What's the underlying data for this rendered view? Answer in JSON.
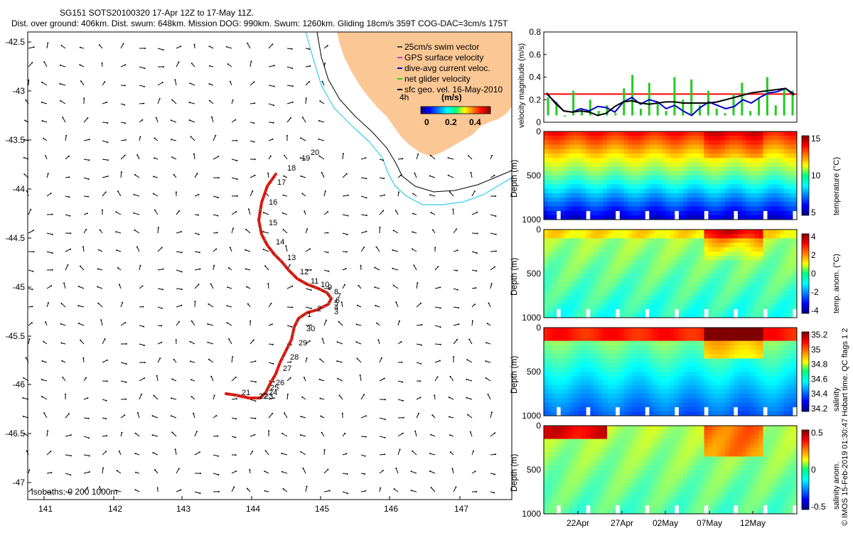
{
  "header": {
    "title": "SG151 SOTS20100320 17-Apr 12Z to 17-May 11Z.",
    "subtitle": "Dist. over ground: 406km. Dist. swum: 648km. Mission DOG: 990km. Swum: 1260km. Gliding 18cm/s 359T COG-DAC=3cm/s 175T"
  },
  "map": {
    "lon_ticks": [
      "141",
      "142",
      "143",
      "144",
      "145",
      "146",
      "147"
    ],
    "lat_ticks": [
      "-42.5",
      "-43",
      "-43.5",
      "-44",
      "-44.5",
      "-45",
      "-45.5",
      "-46",
      "-46.5",
      "-47"
    ],
    "legend": [
      {
        "label": "25cm/s swim vector",
        "color": "#444444"
      },
      {
        "label": "GPS surface velocity",
        "color": "#cc33cc"
      },
      {
        "label": "dive-avg current veloc.",
        "color": "#0000cc"
      },
      {
        "label": "net glider velocity",
        "color": "#22dd22"
      },
      {
        "label": "sfc geo. vel. 16-May-2010",
        "color": "#000000"
      }
    ],
    "legend_scale_label": "4h",
    "colorbar_unit": "(m/s)",
    "colorbar_ticks": [
      "0",
      "0.2",
      "0.4"
    ],
    "isobaths_label": "isobaths: 0   200  1000m",
    "track_day_labels": [
      "20",
      "19",
      "18",
      "17",
      "16",
      "15",
      "14",
      "13",
      "12",
      "11",
      "10",
      "9",
      "8",
      "7",
      "6",
      "5",
      "4",
      "3",
      "2",
      "1",
      "30",
      "29",
      "28",
      "27",
      "26",
      "25",
      "24",
      "23",
      "22",
      "21"
    ],
    "colors": {
      "land": "#fbc794",
      "coast_isobath": "#33ccee",
      "track": "#dd1111",
      "track_marker": "#22cc22"
    }
  },
  "chart_data": [
    {
      "type": "line",
      "title": "velocity magnitude",
      "ylabel": "velocity magnitude (m/s)",
      "ylim": [
        0,
        0.8
      ],
      "yticks": [
        "0",
        "0.2",
        "0.4",
        "0.6",
        "0.8"
      ],
      "reference_line": 0.25,
      "series": [
        {
          "name": "net glider velocity",
          "color": "#22cc22",
          "values": [
            0.22,
            0.18,
            0.05,
            0.28,
            0.12,
            0.2,
            0.1,
            0.15,
            0.08,
            0.3,
            0.42,
            0.12,
            0.35,
            0.18,
            0.1,
            0.4,
            0.2,
            0.38,
            0.15,
            0.28,
            0.12,
            0.08,
            0.25,
            0.35,
            0.1,
            0.22,
            0.4,
            0.15,
            0.3,
            0.28
          ]
        },
        {
          "name": "dive-avg current veloc.",
          "color": "#0000cc",
          "values": [
            0.25,
            0.18,
            0.1,
            0.09,
            0.12,
            0.1,
            0.14,
            0.13,
            0.09,
            0.18,
            0.22,
            0.16,
            0.2,
            0.18,
            0.12,
            0.15,
            0.1,
            0.06,
            0.13,
            0.18,
            0.15,
            0.12,
            0.14,
            0.2,
            0.17,
            0.22,
            0.26,
            0.27,
            0.3,
            0.25
          ]
        },
        {
          "name": "sfc geo. vel.",
          "color": "#000000",
          "values": [
            0.26,
            0.17,
            0.1,
            0.09,
            0.1,
            0.09,
            0.06,
            0.08,
            0.14,
            0.18,
            0.19,
            0.17,
            0.16,
            0.17,
            0.18,
            0.18,
            0.17,
            0.17,
            0.17,
            0.17,
            0.18,
            0.2,
            0.22,
            0.24,
            0.26,
            0.27,
            0.28,
            0.29,
            0.3,
            0.24
          ]
        }
      ]
    },
    {
      "type": "heatmap",
      "title": "temperature",
      "ylabel": "Depth (m)",
      "colorbar_label": "temperature (°C)",
      "colorbar_range": [
        4,
        16
      ],
      "colorbar_ticks": [
        "15",
        "10",
        "5"
      ],
      "yticks": [
        "0",
        "500",
        "1000"
      ],
      "surface_value": 14,
      "bottom_value": 4.5
    },
    {
      "type": "heatmap",
      "title": "temp. anom.",
      "ylabel": "Depth (m)",
      "colorbar_label": "temp. anom. (°C)",
      "colorbar_range": [
        -4,
        4
      ],
      "colorbar_ticks": [
        "4",
        "2",
        "0",
        "-2",
        "-4"
      ],
      "yticks": [
        "0",
        "500",
        "1000"
      ]
    },
    {
      "type": "heatmap",
      "title": "salinity",
      "ylabel": "Depth (m)",
      "colorbar_label": "salinity",
      "colorbar_range": [
        34.15,
        35.25
      ],
      "colorbar_ticks": [
        "35.2",
        "35",
        "34.8",
        "34.6",
        "34.4",
        "34.2"
      ],
      "yticks": [
        "0",
        "500",
        "1000"
      ]
    },
    {
      "type": "heatmap",
      "title": "salinity anom.",
      "ylabel": "Depth (m)",
      "colorbar_label": "salinity anom.",
      "colorbar_range": [
        -0.5,
        0.5
      ],
      "colorbar_ticks": [
        "0.5",
        "0",
        "-0.5"
      ],
      "yticks": [
        "0",
        "500",
        "1000"
      ],
      "xticks": [
        "22Apr",
        "27Apr",
        "02May",
        "07May",
        "12May"
      ]
    }
  ],
  "footer": {
    "credit": "© IMOS 15-Feb-2019 01:30:47 Hobart time. QC flags 1  2"
  }
}
